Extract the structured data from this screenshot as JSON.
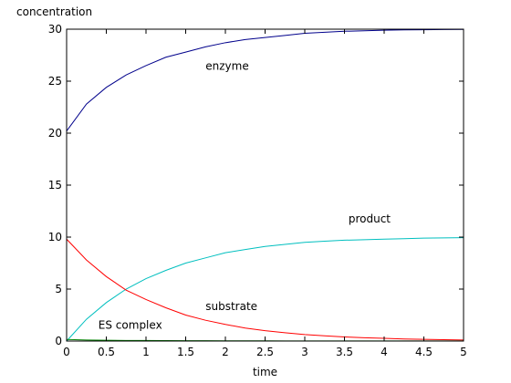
{
  "chart_data": {
    "type": "line",
    "title": "",
    "xlabel": "time",
    "ylabel": "concentration",
    "xlim": [
      0,
      5
    ],
    "ylim": [
      0,
      30
    ],
    "grid": false,
    "x_ticks": [
      0,
      0.5,
      1,
      1.5,
      2,
      2.5,
      3,
      3.5,
      4,
      4.5,
      5
    ],
    "x_tick_labels": [
      "0",
      "0.5",
      "1",
      "1.5",
      "2",
      "2.5",
      "3",
      "3.5",
      "4",
      "4.5",
      "5"
    ],
    "y_ticks": [
      0,
      5,
      10,
      15,
      20,
      25,
      30
    ],
    "y_tick_labels": [
      "0",
      "5",
      "10",
      "15",
      "20",
      "25",
      "30"
    ],
    "x": [
      0,
      0.25,
      0.5,
      0.75,
      1,
      1.25,
      1.5,
      1.75,
      2,
      2.25,
      2.5,
      2.75,
      3,
      3.25,
      3.5,
      3.75,
      4,
      4.25,
      4.5,
      4.75,
      5
    ],
    "series": [
      {
        "color": "#00008b",
        "values": [
          20.2,
          22.8,
          24.4,
          25.6,
          26.5,
          27.3,
          27.8,
          28.3,
          28.7,
          29.0,
          29.2,
          29.4,
          29.6,
          29.7,
          29.8,
          29.85,
          29.9,
          29.93,
          29.95,
          29.97,
          29.98
        ]
      },
      {
        "color": "#00bfbf",
        "values": [
          0,
          2.1,
          3.7,
          5.0,
          6.0,
          6.8,
          7.5,
          8.0,
          8.5,
          8.8,
          9.1,
          9.3,
          9.5,
          9.6,
          9.7,
          9.75,
          9.8,
          9.85,
          9.9,
          9.92,
          9.95
        ]
      },
      {
        "color": "#ff0000",
        "values": [
          9.8,
          7.8,
          6.2,
          4.9,
          4.0,
          3.2,
          2.5,
          2.0,
          1.6,
          1.25,
          1.0,
          0.8,
          0.62,
          0.5,
          0.4,
          0.32,
          0.26,
          0.2,
          0.16,
          0.13,
          0.1
        ]
      },
      {
        "color": "#008000",
        "values": [
          0.15,
          0.1,
          0.08,
          0.06,
          0.05,
          0.04,
          0.03,
          0.03,
          0.02,
          0.02,
          0.02,
          0.01,
          0.01,
          0.01,
          0.01,
          0.01,
          0.01,
          0.01,
          0.01,
          0.01,
          0.01
        ]
      }
    ],
    "annotations": [
      {
        "text": "enzyme",
        "x": 1.75,
        "y": 26.1
      },
      {
        "text": "product",
        "x": 3.55,
        "y": 11.4
      },
      {
        "text": "substrate",
        "x": 1.75,
        "y": 3.0
      },
      {
        "text": "ES complex",
        "x": 0.4,
        "y": 1.2
      }
    ]
  }
}
